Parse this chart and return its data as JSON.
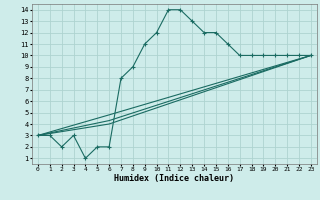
{
  "xlabel": "Humidex (Indice chaleur)",
  "bg_color": "#ceecea",
  "grid_color": "#aed4d0",
  "line_color": "#1a6b62",
  "xlim": [
    -0.5,
    23.5
  ],
  "ylim": [
    0.5,
    14.5
  ],
  "xticks": [
    0,
    1,
    2,
    3,
    4,
    5,
    6,
    7,
    8,
    9,
    10,
    11,
    12,
    13,
    14,
    15,
    16,
    17,
    18,
    19,
    20,
    21,
    22,
    23
  ],
  "yticks": [
    1,
    2,
    3,
    4,
    5,
    6,
    7,
    8,
    9,
    10,
    11,
    12,
    13,
    14
  ],
  "line1_x": [
    0,
    1,
    2,
    3,
    4,
    5,
    6,
    7,
    8,
    9,
    10,
    11,
    12,
    13,
    14,
    15,
    16,
    17,
    18,
    19,
    20,
    21,
    22,
    23
  ],
  "line1_y": [
    3,
    3,
    2,
    3,
    1,
    2,
    2,
    8,
    9,
    11,
    12,
    14,
    14,
    13,
    12,
    12,
    11,
    10,
    10,
    10,
    10,
    10,
    10,
    10
  ],
  "line2_x": [
    0,
    6,
    23
  ],
  "line2_y": [
    3,
    4,
    10
  ],
  "line3_x": [
    0,
    6,
    23
  ],
  "line3_y": [
    3,
    4.3,
    10
  ],
  "line4_x": [
    0,
    6,
    23
  ],
  "line4_y": [
    3,
    4.8,
    10
  ]
}
